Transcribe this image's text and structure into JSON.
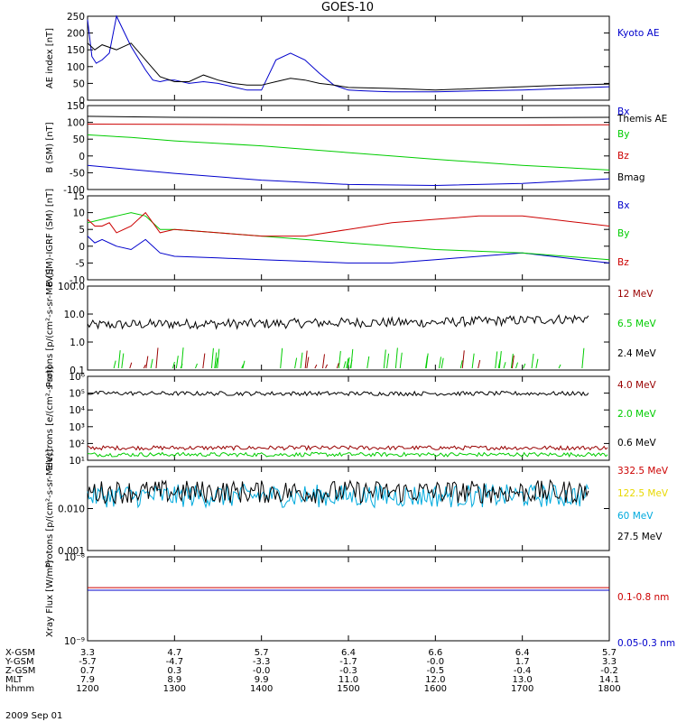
{
  "title": "GOES-10",
  "colors": {
    "black": "#000000",
    "blue": "#0000cc",
    "red": "#cc0000",
    "green": "#00cc00",
    "darkred": "#990000",
    "yellow": "#e8d800",
    "cyan": "#00aadd"
  },
  "x_axis": {
    "tick_rows": [
      {
        "label": "X-GSM",
        "values": [
          "3.3",
          "4.7",
          "5.7",
          "6.4",
          "6.6",
          "6.4",
          "5.7"
        ]
      },
      {
        "label": "Y-GSM",
        "values": [
          "-5.7",
          "-4.7",
          "-3.3",
          "-1.7",
          "-0.0",
          "1.7",
          "3.3"
        ]
      },
      {
        "label": "Z-GSM",
        "values": [
          "0.7",
          "0.3",
          "-0.0",
          "-0.3",
          "-0.5",
          "-0.4",
          "-0.2"
        ]
      },
      {
        "label": "MLT",
        "values": [
          "7.9",
          "8.9",
          "9.9",
          "11.0",
          "12.0",
          "13.0",
          "14.1"
        ]
      },
      {
        "label": "hhmm",
        "values": [
          "1200",
          "1300",
          "1400",
          "1500",
          "1600",
          "1700",
          "1800"
        ]
      }
    ],
    "date": "2009 Sep 01"
  },
  "chart_data": [
    {
      "type": "line",
      "key": "ae",
      "ylabel": "AE index [nT]",
      "ylim": [
        0,
        250
      ],
      "yticks": [
        "0",
        "50",
        "100",
        "150",
        "200",
        "250"
      ],
      "ytick_values": [
        0,
        50,
        100,
        150,
        200,
        250
      ],
      "legend_placement": "right",
      "series": [
        {
          "name": "Kyoto AE",
          "color": "#0000cc",
          "x": [
            1200,
            1203,
            1206,
            1210,
            1215,
            1220,
            1230,
            1240,
            1245,
            1250,
            1255,
            1300,
            1310,
            1320,
            1330,
            1340,
            1350,
            1400,
            1410,
            1420,
            1430,
            1440,
            1450,
            1500,
            1510,
            1520,
            1530,
            1600,
            1630,
            1700,
            1730,
            1800
          ],
          "values": [
            240,
            130,
            110,
            120,
            140,
            250,
            160,
            90,
            60,
            55,
            60,
            60,
            50,
            55,
            50,
            40,
            30,
            30,
            120,
            140,
            120,
            80,
            45,
            30,
            28,
            26,
            25,
            25,
            28,
            30,
            35,
            40
          ]
        },
        {
          "name": "Themis AE",
          "color": "#000000",
          "x": [
            1200,
            1205,
            1210,
            1220,
            1230,
            1240,
            1250,
            1300,
            1310,
            1320,
            1330,
            1340,
            1350,
            1400,
            1410,
            1420,
            1430,
            1440,
            1450,
            1500,
            1530,
            1600,
            1630,
            1700,
            1730,
            1800
          ],
          "values": [
            170,
            150,
            165,
            150,
            170,
            120,
            70,
            55,
            55,
            75,
            60,
            50,
            45,
            45,
            55,
            65,
            60,
            50,
            45,
            38,
            35,
            30,
            35,
            40,
            45,
            48
          ]
        }
      ]
    },
    {
      "type": "line",
      "key": "bsm",
      "ylabel": "B (SM) [nT]",
      "ylim": [
        -100,
        150
      ],
      "yticks": [
        "-100",
        "-50",
        "0",
        "50",
        "100",
        "150"
      ],
      "ytick_values": [
        -100,
        -50,
        0,
        50,
        100,
        150
      ],
      "legend_placement": "right",
      "series": [
        {
          "name": "Bx",
          "color": "#0000cc",
          "x": [
            1200,
            1230,
            1300,
            1400,
            1500,
            1600,
            1700,
            1800
          ],
          "values": [
            -28,
            -40,
            -52,
            -72,
            -85,
            -88,
            -82,
            -68
          ]
        },
        {
          "name": "By",
          "color": "#00cc00",
          "x": [
            1200,
            1230,
            1300,
            1400,
            1500,
            1600,
            1700,
            1800
          ],
          "values": [
            63,
            55,
            45,
            30,
            10,
            -10,
            -28,
            -42
          ]
        },
        {
          "name": "Bz",
          "color": "#cc0000",
          "x": [
            1200,
            1300,
            1400,
            1500,
            1600,
            1700,
            1800
          ],
          "values": [
            95,
            94,
            93,
            92,
            92,
            92,
            93
          ]
        },
        {
          "name": "Bmag",
          "color": "#000000",
          "x": [
            1200,
            1300,
            1400,
            1500,
            1600,
            1700,
            1800
          ],
          "values": [
            118,
            115,
            114,
            114,
            114,
            114,
            115
          ]
        }
      ]
    },
    {
      "type": "line",
      "key": "bigrf",
      "ylabel": "B (SM)-IGRF (SM) [nT]",
      "ylim": [
        -10,
        15
      ],
      "yticks": [
        "-10",
        "-5",
        "0",
        "5",
        "10",
        "15"
      ],
      "ytick_values": [
        -10,
        -5,
        0,
        5,
        10,
        15
      ],
      "legend_placement": "right",
      "series": [
        {
          "name": "Bx",
          "color": "#0000cc",
          "x": [
            1200,
            1205,
            1210,
            1220,
            1230,
            1240,
            1250,
            1300,
            1330,
            1400,
            1430,
            1500,
            1530,
            1600,
            1630,
            1700,
            1720,
            1740,
            1800
          ],
          "values": [
            3,
            1,
            2,
            0,
            -1,
            2,
            -2,
            -3,
            -3.5,
            -4,
            -4.5,
            -5,
            -5,
            -4,
            -3,
            -2,
            -3,
            -4,
            -5
          ]
        },
        {
          "name": "By",
          "color": "#00cc00",
          "x": [
            1200,
            1210,
            1220,
            1230,
            1240,
            1250,
            1300,
            1330,
            1400,
            1430,
            1500,
            1530,
            1600,
            1630,
            1700,
            1730,
            1800
          ],
          "values": [
            7,
            8,
            9,
            10,
            9,
            5,
            5,
            4,
            3,
            2,
            1,
            0,
            -1,
            -1.5,
            -2,
            -3,
            -4
          ]
        },
        {
          "name": "Bz",
          "color": "#cc0000",
          "x": [
            1200,
            1205,
            1210,
            1215,
            1220,
            1230,
            1240,
            1250,
            1300,
            1330,
            1400,
            1430,
            1500,
            1530,
            1600,
            1630,
            1700,
            1720,
            1740,
            1800
          ],
          "values": [
            8,
            6,
            6,
            7,
            4,
            6,
            10,
            4,
            5,
            4,
            3,
            3,
            5,
            7,
            8,
            9,
            9,
            8,
            7,
            6
          ]
        }
      ]
    },
    {
      "type": "line",
      "key": "protons_low",
      "ylabel": "Protons [p/(cm²-s-sr-MeV)]",
      "ylim": [
        0.1,
        100
      ],
      "yscale": "log",
      "yticks": [
        "0.1",
        "1.0",
        "10.0",
        "100.0"
      ],
      "ytick_values": [
        0.1,
        1,
        10,
        100
      ],
      "legend_placement": "right",
      "series": [
        {
          "name": "12 MeV",
          "color": "#990000",
          "x": [],
          "values": []
        },
        {
          "name": "6.5 MeV",
          "color": "#00cc00",
          "x": [],
          "values": []
        },
        {
          "name": "2.4 MeV",
          "color": "#000000",
          "x": [
            1200,
            1300,
            1400,
            1500,
            1600,
            1700,
            1746
          ],
          "values": [
            4,
            4.5,
            4.5,
            5,
            5,
            6,
            7
          ]
        }
      ]
    },
    {
      "type": "line",
      "key": "electrons",
      "ylabel": "Electrons [e/(cm²-s-sr)]",
      "ylim": [
        10,
        1000000
      ],
      "yscale": "log",
      "yticks": [
        "10¹",
        "10²",
        "10³",
        "10⁴",
        "10⁵",
        "10⁶"
      ],
      "ytick_values": [
        10,
        100,
        1000,
        10000,
        100000,
        1000000
      ],
      "legend_placement": "right",
      "series": [
        {
          "name": "4.0 MeV",
          "color": "#990000",
          "x": [
            1200,
            1300,
            1400,
            1500,
            1600,
            1700,
            1800
          ],
          "values": [
            55,
            55,
            55,
            55,
            55,
            55,
            55
          ]
        },
        {
          "name": "2.0 MeV",
          "color": "#00cc00",
          "x": [
            1200,
            1300,
            1400,
            1500,
            1600,
            1700,
            1800
          ],
          "values": [
            22,
            22,
            22,
            22,
            22,
            22,
            22
          ]
        },
        {
          "name": "0.6 MeV",
          "color": "#000000",
          "x": [
            1200,
            1300,
            1400,
            1500,
            1600,
            1700,
            1746
          ],
          "values": [
            100000,
            95000,
            95000,
            95000,
            95000,
            95000,
            95000
          ]
        }
      ]
    },
    {
      "type": "line",
      "key": "protons_high",
      "ylabel": "Protons [p/(cm²-s-sr-MeV)]",
      "ylim": [
        0.001,
        0.1
      ],
      "yscale": "log",
      "yticks": [
        "0.001",
        "0.010"
      ],
      "ytick_values": [
        0.001,
        0.01
      ],
      "legend_placement": "right",
      "series": [
        {
          "name": "332.5 MeV",
          "color": "#cc0000",
          "x": [],
          "values": []
        },
        {
          "name": "122.5 MeV",
          "color": "#e8d800",
          "x": [],
          "values": []
        },
        {
          "name": "60 MeV",
          "color": "#00aadd",
          "x": [
            1200,
            1300,
            1400,
            1500,
            1600,
            1700,
            1746
          ],
          "values": [
            0.02,
            0.02,
            0.02,
            0.02,
            0.02,
            0.02,
            0.02
          ]
        },
        {
          "name": "27.5 MeV",
          "color": "#000000",
          "x": [
            1200,
            1300,
            1400,
            1500,
            1600,
            1700,
            1746
          ],
          "values": [
            0.025,
            0.025,
            0.025,
            0.025,
            0.025,
            0.025,
            0.025
          ]
        }
      ]
    },
    {
      "type": "line",
      "key": "xray",
      "ylabel": "Xray Flux [W/m²]",
      "ylim": [
        1e-09,
        1e-08
      ],
      "yscale": "log",
      "yticks": [
        "10⁻⁹",
        "10⁻⁸"
      ],
      "ytick_values": [
        1e-09,
        1e-08
      ],
      "legend_placement": "right",
      "series": [
        {
          "name": "0.1-0.8 nm",
          "color": "#cc0000",
          "x": [
            1200,
            1300,
            1400,
            1500,
            1600,
            1700,
            1800
          ],
          "values": [
            4.3e-09,
            4.3e-09,
            4.3e-09,
            4.3e-09,
            4.3e-09,
            4.3e-09,
            4.3e-09
          ]
        },
        {
          "name": "0.05-0.3 nm",
          "color": "#0000cc",
          "x": [
            1200,
            1300,
            1400,
            1500,
            1600,
            1700,
            1800
          ],
          "values": [
            4e-09,
            4e-09,
            4e-09,
            4e-09,
            4e-09,
            4e-09,
            4e-09
          ]
        }
      ]
    }
  ]
}
